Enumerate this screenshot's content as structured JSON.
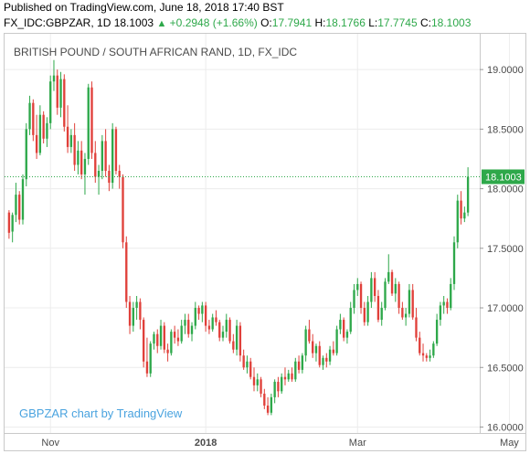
{
  "header": {
    "published": "Published on TradingView.com, June 18, 2018 17:40 BST",
    "symbol": "FX_IDC:GBPZAR, 1D",
    "last": "18.1003",
    "change": "+0.2948 (+1.66%)",
    "o_label": "O:",
    "o_value": "17.7941",
    "h_label": "H:",
    "h_value": "18.1766",
    "l_label": "L:",
    "l_value": "17.7745",
    "c_label": "C:",
    "c_value": "18.1003"
  },
  "colors": {
    "up": "#2ea84a",
    "down": "#e0403a",
    "price_line": "#2ea84a",
    "grid": "#ececec",
    "watermark": "#4aa3df",
    "price_tag_bg": "#2ea84a"
  },
  "chart_data": {
    "type": "candlestick",
    "title": "BRITISH POUND / SOUTH AFRICAN RAND, 1D, FX_IDC",
    "watermark": "GBPZAR chart by TradingView",
    "last_price_label": "18.1003",
    "last_price": 18.1003,
    "ylim": [
      15.95,
      19.3
    ],
    "yticks": [
      16.0,
      16.5,
      17.0,
      17.5,
      18.0,
      18.5,
      19.0
    ],
    "ytick_labels": [
      "16.0000",
      "16.5000",
      "17.0000",
      "17.5000",
      "18.0000",
      "18.5000",
      "19.0000"
    ],
    "xticks": [
      {
        "label": "Nov",
        "index": 12
      },
      {
        "label": "2018",
        "index": 57
      },
      {
        "label": "Mar",
        "index": 101
      },
      {
        "label": "May",
        "index": 145
      }
    ],
    "grid": true,
    "ohlc": [
      [
        17.8,
        17.82,
        17.58,
        17.63
      ],
      [
        17.64,
        17.8,
        17.55,
        17.78
      ],
      [
        17.78,
        18.05,
        17.72,
        17.95
      ],
      [
        17.95,
        17.98,
        17.7,
        17.74
      ],
      [
        17.74,
        18.12,
        17.7,
        18.08
      ],
      [
        18.08,
        18.55,
        18.02,
        18.5
      ],
      [
        18.5,
        18.78,
        18.45,
        18.72
      ],
      [
        18.72,
        18.75,
        18.4,
        18.45
      ],
      [
        18.45,
        18.62,
        18.25,
        18.3
      ],
      [
        18.3,
        18.7,
        18.28,
        18.62
      ],
      [
        18.62,
        18.65,
        18.38,
        18.42
      ],
      [
        18.42,
        18.6,
        18.35,
        18.55
      ],
      [
        18.55,
        18.95,
        18.5,
        18.9
      ],
      [
        18.9,
        19.08,
        18.82,
        18.95
      ],
      [
        18.95,
        19.0,
        18.62,
        18.68
      ],
      [
        18.68,
        18.98,
        18.6,
        18.92
      ],
      [
        18.92,
        18.96,
        18.48,
        18.52
      ],
      [
        18.52,
        18.7,
        18.3,
        18.35
      ],
      [
        18.35,
        18.5,
        18.3,
        18.45
      ],
      [
        18.45,
        18.55,
        18.15,
        18.2
      ],
      [
        18.2,
        18.4,
        18.12,
        18.32
      ],
      [
        18.32,
        18.4,
        18.08,
        18.12
      ],
      [
        18.12,
        18.3,
        17.95,
        18.25
      ],
      [
        18.25,
        18.88,
        18.2,
        18.85
      ],
      [
        18.85,
        18.9,
        18.25,
        18.3
      ],
      [
        18.3,
        18.4,
        18.05,
        18.1
      ],
      [
        18.1,
        18.2,
        17.95,
        18.15
      ],
      [
        18.15,
        18.45,
        18.08,
        18.4
      ],
      [
        18.4,
        18.5,
        18.1,
        18.15
      ],
      [
        18.15,
        18.2,
        17.98,
        18.05
      ],
      [
        18.05,
        18.55,
        18.0,
        18.5
      ],
      [
        18.5,
        18.52,
        18.12,
        18.15
      ],
      [
        18.15,
        18.2,
        18.0,
        18.1
      ],
      [
        18.1,
        18.12,
        17.5,
        17.55
      ],
      [
        17.55,
        17.6,
        17.0,
        17.05
      ],
      [
        17.05,
        17.1,
        16.78,
        16.85
      ],
      [
        16.85,
        17.05,
        16.8,
        17.0
      ],
      [
        17.0,
        17.1,
        16.9,
        17.05
      ],
      [
        17.05,
        17.08,
        16.82,
        16.9
      ],
      [
        16.9,
        16.92,
        16.5,
        16.55
      ],
      [
        16.55,
        16.75,
        16.42,
        16.45
      ],
      [
        16.45,
        16.72,
        16.42,
        16.7
      ],
      [
        16.7,
        16.8,
        16.65,
        16.78
      ],
      [
        16.78,
        16.82,
        16.62,
        16.68
      ],
      [
        16.68,
        16.9,
        16.65,
        16.85
      ],
      [
        16.85,
        16.88,
        16.62,
        16.65
      ],
      [
        16.65,
        16.7,
        16.55,
        16.62
      ],
      [
        16.62,
        16.82,
        16.6,
        16.8
      ],
      [
        16.8,
        16.85,
        16.7,
        16.75
      ],
      [
        16.75,
        16.82,
        16.68,
        16.72
      ],
      [
        16.72,
        16.9,
        16.7,
        16.85
      ],
      [
        16.85,
        16.95,
        16.78,
        16.9
      ],
      [
        16.9,
        16.95,
        16.75,
        16.78
      ],
      [
        16.78,
        16.88,
        16.72,
        16.85
      ],
      [
        16.85,
        17.05,
        16.82,
        17.0
      ],
      [
        17.0,
        17.02,
        16.9,
        16.95
      ],
      [
        16.95,
        17.05,
        16.88,
        17.02
      ],
      [
        17.02,
        17.05,
        16.8,
        16.85
      ],
      [
        16.85,
        16.9,
        16.78,
        16.82
      ],
      [
        16.82,
        16.95,
        16.8,
        16.92
      ],
      [
        16.92,
        16.98,
        16.85,
        16.88
      ],
      [
        16.88,
        16.9,
        16.72,
        16.75
      ],
      [
        16.75,
        16.85,
        16.72,
        16.8
      ],
      [
        16.8,
        16.95,
        16.75,
        16.9
      ],
      [
        16.9,
        16.92,
        16.7,
        16.72
      ],
      [
        16.72,
        16.78,
        16.62,
        16.65
      ],
      [
        16.65,
        16.9,
        16.6,
        16.85
      ],
      [
        16.85,
        16.88,
        16.55,
        16.6
      ],
      [
        16.6,
        16.65,
        16.48,
        16.5
      ],
      [
        16.5,
        16.6,
        16.45,
        16.55
      ],
      [
        16.55,
        16.58,
        16.4,
        16.42
      ],
      [
        16.42,
        16.5,
        16.3,
        16.35
      ],
      [
        16.35,
        16.45,
        16.3,
        16.4
      ],
      [
        16.4,
        16.42,
        16.25,
        16.28
      ],
      [
        16.28,
        16.32,
        16.15,
        16.18
      ],
      [
        16.18,
        16.25,
        16.1,
        16.12
      ],
      [
        16.12,
        16.28,
        16.1,
        16.25
      ],
      [
        16.25,
        16.4,
        16.2,
        16.38
      ],
      [
        16.38,
        16.42,
        16.25,
        16.3
      ],
      [
        16.3,
        16.45,
        16.28,
        16.42
      ],
      [
        16.42,
        16.5,
        16.35,
        16.4
      ],
      [
        16.4,
        16.48,
        16.38,
        16.45
      ],
      [
        16.45,
        16.5,
        16.38,
        16.4
      ],
      [
        16.4,
        16.58,
        16.38,
        16.55
      ],
      [
        16.55,
        16.6,
        16.45,
        16.48
      ],
      [
        16.48,
        16.62,
        16.45,
        16.6
      ],
      [
        16.6,
        16.85,
        16.55,
        16.82
      ],
      [
        16.82,
        16.9,
        16.7,
        16.72
      ],
      [
        16.72,
        16.78,
        16.58,
        16.62
      ],
      [
        16.62,
        16.7,
        16.55,
        16.68
      ],
      [
        16.68,
        16.72,
        16.5,
        16.52
      ],
      [
        16.52,
        16.6,
        16.48,
        16.58
      ],
      [
        16.58,
        16.62,
        16.5,
        16.55
      ],
      [
        16.55,
        16.68,
        16.52,
        16.65
      ],
      [
        16.65,
        16.72,
        16.6,
        16.62
      ],
      [
        16.62,
        16.85,
        16.6,
        16.82
      ],
      [
        16.82,
        16.95,
        16.78,
        16.9
      ],
      [
        16.9,
        16.92,
        16.72,
        16.75
      ],
      [
        16.75,
        16.82,
        16.7,
        16.8
      ],
      [
        16.8,
        17.05,
        16.78,
        17.0
      ],
      [
        17.0,
        17.2,
        16.95,
        17.15
      ],
      [
        17.15,
        17.25,
        17.1,
        17.2
      ],
      [
        17.2,
        17.22,
        16.95,
        17.0
      ],
      [
        17.0,
        17.05,
        16.85,
        16.88
      ],
      [
        16.88,
        17.1,
        16.85,
        17.05
      ],
      [
        17.05,
        17.3,
        17.0,
        17.25
      ],
      [
        17.25,
        17.3,
        17.05,
        17.1
      ],
      [
        17.1,
        17.15,
        16.88,
        16.9
      ],
      [
        16.9,
        17.05,
        16.85,
        17.0
      ],
      [
        17.0,
        17.25,
        16.98,
        17.22
      ],
      [
        17.22,
        17.45,
        17.2,
        17.3
      ],
      [
        17.3,
        17.32,
        17.1,
        17.12
      ],
      [
        17.12,
        17.25,
        17.05,
        17.2
      ],
      [
        17.2,
        17.22,
        16.95,
        17.0
      ],
      [
        17.0,
        17.05,
        16.9,
        16.92
      ],
      [
        16.92,
        17.0,
        16.85,
        16.95
      ],
      [
        16.95,
        17.2,
        16.92,
        17.15
      ],
      [
        17.15,
        17.2,
        16.9,
        16.92
      ],
      [
        16.92,
        17.0,
        16.72,
        16.75
      ],
      [
        16.75,
        16.8,
        16.6,
        16.62
      ],
      [
        16.62,
        16.7,
        16.55,
        16.6
      ],
      [
        16.6,
        16.62,
        16.55,
        16.58
      ],
      [
        16.58,
        16.65,
        16.55,
        16.6
      ],
      [
        16.6,
        16.72,
        16.58,
        16.7
      ],
      [
        16.7,
        16.95,
        16.68,
        16.9
      ],
      [
        16.9,
        17.05,
        16.85,
        17.02
      ],
      [
        17.02,
        17.1,
        16.95,
        17.05
      ],
      [
        17.05,
        17.08,
        16.95,
        17.0
      ],
      [
        17.0,
        17.25,
        16.98,
        17.2
      ],
      [
        17.2,
        17.6,
        17.15,
        17.55
      ],
      [
        17.55,
        17.95,
        17.5,
        17.9
      ],
      [
        17.9,
        17.98,
        17.7,
        17.75
      ],
      [
        17.75,
        17.85,
        17.72,
        17.8
      ],
      [
        17.8,
        18.18,
        17.77,
        18.1003
      ]
    ]
  }
}
